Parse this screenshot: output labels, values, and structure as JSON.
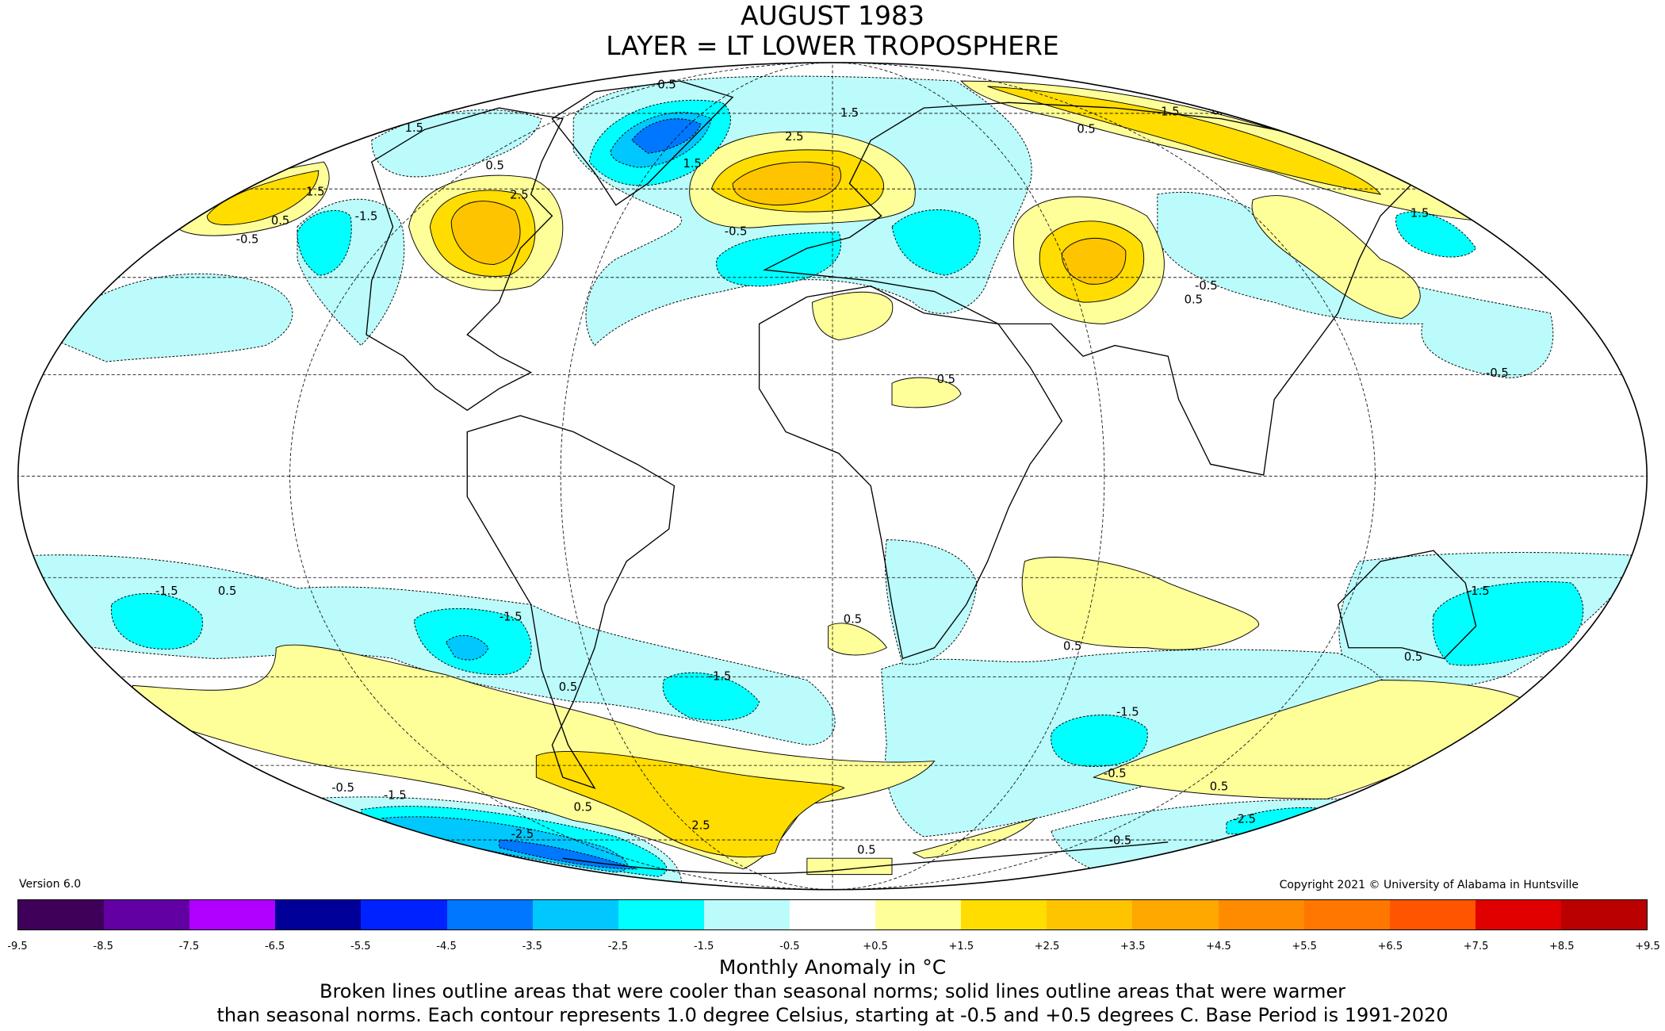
{
  "header": {
    "title": "AUGUST 1983",
    "layer": "LAYER = LT LOWER TROPOSPHERE"
  },
  "version": "Version 6.0",
  "copyright": "Copyright 2021 © University of Alabama in Huntsville",
  "colorbar": {
    "ticks": [
      "-9.5",
      "-8.5",
      "-7.5",
      "-6.5",
      "-5.5",
      "-4.5",
      "-3.5",
      "-2.5",
      "-1.5",
      "-0.5",
      "+0.5",
      "+1.5",
      "+2.5",
      "+3.5",
      "+4.5",
      "+5.5",
      "+6.5",
      "+7.5",
      "+8.5",
      "+9.5"
    ],
    "colors": [
      "#3f0059",
      "#6300a3",
      "#b000ff",
      "#000099",
      "#0022ff",
      "#0077ff",
      "#00c8ff",
      "#00ffff",
      "#bbfbfb",
      "#ffffff",
      "#ffff99",
      "#ffdd00",
      "#ffc400",
      "#ffa800",
      "#ff8c00",
      "#ff7700",
      "#ff5500",
      "#e00000",
      "#bb0000"
    ],
    "unit_label": "Monthly Anomaly in °C"
  },
  "caption": {
    "line1": "Broken lines outline areas that were cooler than seasonal norms; solid lines outline areas that were warmer",
    "line2": "than seasonal norms. Each contour represents 1.0 degree Celsius, starting at -0.5 and +0.5 degrees C. Base Period is 1991-2020"
  },
  "contour_labels": [
    "0.5",
    "1.5",
    "2.5",
    "1.5",
    "0.5",
    "2.5",
    "1.5",
    "0.5",
    "-0.5",
    "-1.5",
    "1.5",
    "-0.5",
    "1.5",
    "0.5",
    "0.5",
    "1.5",
    "-0.5",
    "0.5",
    "0.5",
    "-0.5",
    "-1.5",
    "0.5",
    "-1.5",
    "0.5",
    "-1.5",
    "0.5",
    "0.5",
    "-1.5",
    "-1.5",
    "0.5",
    "-0.5",
    "0.5",
    "0.5",
    "2.5",
    "-2.5",
    "-0.5",
    "-1.5",
    "-2.5",
    "-0.5",
    "0.5"
  ]
}
